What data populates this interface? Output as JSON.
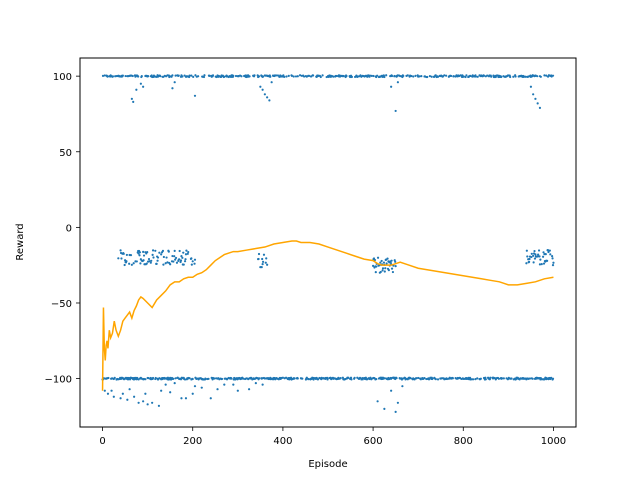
{
  "chart_data": {
    "type": "scatter",
    "xlabel": "Episode",
    "ylabel": "Reward",
    "xlim": [
      -50,
      1050
    ],
    "ylim": [
      -132,
      112
    ],
    "xticks": [
      0,
      200,
      400,
      600,
      800,
      1000
    ],
    "yticks": [
      -100,
      -50,
      0,
      50,
      100
    ],
    "grid": false,
    "colors": {
      "scatter": "#1f77b4",
      "moving_average": "#ffa500"
    },
    "scatter_segments": [
      {
        "level": 100,
        "x_start": 0,
        "x_end": 1000,
        "density": 0.42
      },
      {
        "level": -100,
        "x_start": 0,
        "x_end": 1000,
        "density": 0.55
      },
      {
        "level": -20,
        "x_start": 35,
        "x_end": 205,
        "density": 0.55
      },
      {
        "level": -22,
        "x_start": 345,
        "x_end": 365,
        "density": 0.6
      },
      {
        "level": -25,
        "x_start": 600,
        "x_end": 650,
        "density": 0.9
      },
      {
        "level": -20,
        "x_start": 940,
        "x_end": 1000,
        "density": 0.8
      }
    ],
    "scatter_outliers": [
      {
        "x": 5,
        "y": -108
      },
      {
        "x": 12,
        "y": -110
      },
      {
        "x": 20,
        "y": -108
      },
      {
        "x": 25,
        "y": -112
      },
      {
        "x": 40,
        "y": -113
      },
      {
        "x": 45,
        "y": -110
      },
      {
        "x": 55,
        "y": -114
      },
      {
        "x": 60,
        "y": -107
      },
      {
        "x": 70,
        "y": -112
      },
      {
        "x": 80,
        "y": -116
      },
      {
        "x": 90,
        "y": -115
      },
      {
        "x": 95,
        "y": -110
      },
      {
        "x": 100,
        "y": -117
      },
      {
        "x": 110,
        "y": -116
      },
      {
        "x": 125,
        "y": -118
      },
      {
        "x": 130,
        "y": -108
      },
      {
        "x": 140,
        "y": -104
      },
      {
        "x": 150,
        "y": -109
      },
      {
        "x": 160,
        "y": -103
      },
      {
        "x": 175,
        "y": -113
      },
      {
        "x": 185,
        "y": -113
      },
      {
        "x": 200,
        "y": -110
      },
      {
        "x": 205,
        "y": -105
      },
      {
        "x": 220,
        "y": -106
      },
      {
        "x": 240,
        "y": -113
      },
      {
        "x": 255,
        "y": -107
      },
      {
        "x": 270,
        "y": -104
      },
      {
        "x": 290,
        "y": -104
      },
      {
        "x": 300,
        "y": -108
      },
      {
        "x": 325,
        "y": -107
      },
      {
        "x": 340,
        "y": -103
      },
      {
        "x": 355,
        "y": -104
      },
      {
        "x": 610,
        "y": -115
      },
      {
        "x": 625,
        "y": -120
      },
      {
        "x": 640,
        "y": -108
      },
      {
        "x": 650,
        "y": -122
      },
      {
        "x": 655,
        "y": -116
      },
      {
        "x": 665,
        "y": -105
      },
      {
        "x": 65,
        "y": 85
      },
      {
        "x": 68,
        "y": 83
      },
      {
        "x": 75,
        "y": 91
      },
      {
        "x": 85,
        "y": 95
      },
      {
        "x": 90,
        "y": 93
      },
      {
        "x": 155,
        "y": 92
      },
      {
        "x": 160,
        "y": 96
      },
      {
        "x": 205,
        "y": 87
      },
      {
        "x": 350,
        "y": 93
      },
      {
        "x": 355,
        "y": 91
      },
      {
        "x": 360,
        "y": 88
      },
      {
        "x": 365,
        "y": 86
      },
      {
        "x": 370,
        "y": 84
      },
      {
        "x": 375,
        "y": 96
      },
      {
        "x": 640,
        "y": 93
      },
      {
        "x": 650,
        "y": 77
      },
      {
        "x": 655,
        "y": 96
      },
      {
        "x": 950,
        "y": 93
      },
      {
        "x": 955,
        "y": 88
      },
      {
        "x": 960,
        "y": 85
      },
      {
        "x": 965,
        "y": 82
      },
      {
        "x": 970,
        "y": 79
      }
    ],
    "moving_average": {
      "name": "",
      "x": [
        0,
        2,
        4,
        6,
        8,
        10,
        12,
        15,
        18,
        22,
        26,
        30,
        35,
        40,
        45,
        50,
        55,
        60,
        65,
        70,
        75,
        80,
        85,
        90,
        100,
        110,
        120,
        130,
        140,
        150,
        160,
        170,
        180,
        190,
        200,
        210,
        220,
        230,
        240,
        250,
        260,
        270,
        280,
        290,
        300,
        320,
        340,
        360,
        380,
        400,
        420,
        430,
        440,
        460,
        480,
        500,
        520,
        540,
        560,
        580,
        600,
        610,
        620,
        630,
        640,
        650,
        660,
        680,
        700,
        720,
        740,
        760,
        780,
        800,
        820,
        840,
        860,
        880,
        890,
        900,
        920,
        940,
        960,
        980,
        1000
      ],
      "values": [
        -108,
        -53,
        -80,
        -88,
        -78,
        -75,
        -80,
        -68,
        -73,
        -70,
        -62,
        -68,
        -72,
        -68,
        -62,
        -60,
        -58,
        -56,
        -60,
        -55,
        -52,
        -48,
        -46,
        -47,
        -50,
        -53,
        -48,
        -45,
        -42,
        -38,
        -36,
        -36,
        -34,
        -33,
        -33,
        -31,
        -30,
        -28,
        -25,
        -22,
        -20,
        -18,
        -17,
        -16,
        -16,
        -15,
        -14,
        -13,
        -11,
        -10,
        -9,
        -9,
        -10,
        -10,
        -11,
        -13,
        -15,
        -17,
        -19,
        -21,
        -22,
        -24,
        -25,
        -25,
        -25,
        -24,
        -23,
        -25,
        -27,
        -28,
        -29,
        -30,
        -31,
        -32,
        -33,
        -34,
        -35,
        -36,
        -37,
        -38,
        -38,
        -37,
        -36,
        -34,
        -33
      ]
    }
  }
}
